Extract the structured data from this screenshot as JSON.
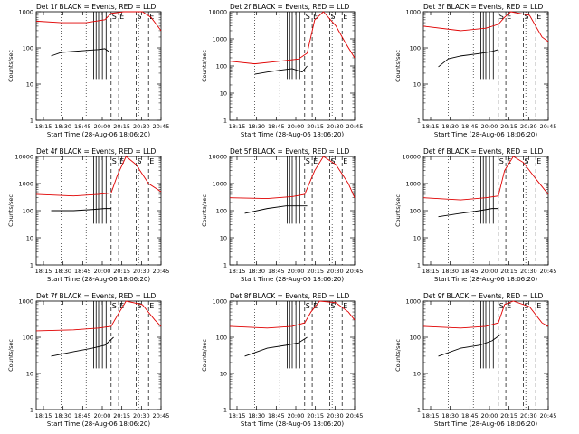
{
  "colors": {
    "events": "#000000",
    "lld": "#e00000",
    "axis": "#000000"
  },
  "common": {
    "xlabel": "Start Time (28-Aug-06 18:06:20)",
    "ylabel": "Counts/sec",
    "xticks": [
      "18:15",
      "18:30",
      "18:45",
      "20:00",
      "20:15",
      "20:30",
      "20:45"
    ]
  },
  "chart_data": [
    {
      "type": "line",
      "title": "Det 1f BLACK = Events, RED = LLD",
      "yscale": "log",
      "ylim": [
        1,
        1000
      ],
      "yticks": [
        "1",
        "10",
        "100",
        "1000"
      ],
      "markers": [
        "S",
        "E",
        "S",
        "E"
      ],
      "series": [
        {
          "name": "Events",
          "color": "#000000",
          "x": [
            0.12,
            0.2,
            0.3,
            0.4,
            0.5,
            0.55,
            0.58
          ],
          "y": [
            60,
            75,
            80,
            85,
            90,
            95,
            80
          ]
        },
        {
          "name": "LLD",
          "color": "#e00000",
          "x": [
            0,
            0.2,
            0.4,
            0.55,
            0.6,
            0.7,
            0.85,
            0.92,
            1.0
          ],
          "y": [
            550,
            500,
            500,
            600,
            900,
            1000,
            1000,
            700,
            300
          ]
        }
      ]
    },
    {
      "type": "line",
      "title": "Det 2f BLACK = Events, RED = LLD",
      "yscale": "log",
      "ylim": [
        1,
        10000
      ],
      "yticks": [
        "1",
        "10",
        "100",
        "1000",
        "10000"
      ],
      "markers": [
        "S",
        "E",
        "S",
        "E"
      ],
      "series": [
        {
          "name": "Events",
          "color": "#000000",
          "x": [
            0.2,
            0.3,
            0.4,
            0.5,
            0.58,
            0.62
          ],
          "y": [
            50,
            60,
            70,
            80,
            60,
            100
          ]
        },
        {
          "name": "LLD",
          "color": "#e00000",
          "x": [
            0,
            0.2,
            0.4,
            0.55,
            0.62,
            0.68,
            0.75,
            0.85,
            0.92,
            1.0
          ],
          "y": [
            150,
            120,
            150,
            180,
            300,
            5000,
            10000,
            3000,
            800,
            200
          ]
        }
      ]
    },
    {
      "type": "line",
      "title": "Det 3f BLACK = Events, RED = LLD",
      "yscale": "log",
      "ylim": [
        1,
        1000
      ],
      "yticks": [
        "1",
        "10",
        "100",
        "1000"
      ],
      "markers": [
        "S",
        "E",
        "S",
        "E"
      ],
      "series": [
        {
          "name": "Events",
          "color": "#000000",
          "x": [
            0.12,
            0.2,
            0.3,
            0.45,
            0.55,
            0.6
          ],
          "y": [
            30,
            50,
            60,
            70,
            80,
            90
          ]
        },
        {
          "name": "LLD",
          "color": "#e00000",
          "x": [
            0,
            0.3,
            0.5,
            0.6,
            0.65,
            0.7,
            0.85,
            0.95,
            1.0
          ],
          "y": [
            400,
            300,
            350,
            450,
            700,
            1000,
            800,
            200,
            150
          ]
        }
      ]
    },
    {
      "type": "line",
      "title": "Det 4f BLACK = Events, RED = LLD",
      "yscale": "log",
      "ylim": [
        1,
        10000
      ],
      "yticks": [
        "1",
        "10",
        "100",
        "1000",
        "10000"
      ],
      "markers": [
        "S",
        "E",
        "S",
        "E"
      ],
      "series": [
        {
          "name": "Events",
          "color": "#000000",
          "x": [
            0.12,
            0.2,
            0.3,
            0.45,
            0.55,
            0.6
          ],
          "y": [
            100,
            100,
            100,
            110,
            120,
            120
          ]
        },
        {
          "name": "LLD",
          "color": "#e00000",
          "x": [
            0,
            0.3,
            0.5,
            0.6,
            0.65,
            0.72,
            0.8,
            0.9,
            1.0
          ],
          "y": [
            400,
            350,
            400,
            450,
            2000,
            10000,
            5000,
            1000,
            500
          ]
        }
      ]
    },
    {
      "type": "line",
      "title": "Det 5f BLACK = Events, RED = LLD",
      "yscale": "log",
      "ylim": [
        1,
        10000
      ],
      "yticks": [
        "1",
        "10",
        "100",
        "1000",
        "10000"
      ],
      "markers": [
        "S",
        "E",
        "S",
        "E"
      ],
      "series": [
        {
          "name": "Events",
          "color": "#000000",
          "x": [
            0.12,
            0.3,
            0.45,
            0.55,
            0.62
          ],
          "y": [
            80,
            120,
            150,
            150,
            150
          ]
        },
        {
          "name": "LLD",
          "color": "#e00000",
          "x": [
            0,
            0.3,
            0.5,
            0.6,
            0.68,
            0.75,
            0.85,
            0.95,
            1.0
          ],
          "y": [
            300,
            280,
            330,
            400,
            3000,
            10000,
            5000,
            1000,
            300
          ]
        }
      ]
    },
    {
      "type": "line",
      "title": "Det 6f BLACK = Events, RED = LLD",
      "yscale": "log",
      "ylim": [
        1,
        10000
      ],
      "yticks": [
        "1",
        "10",
        "100",
        "1000",
        "10000"
      ],
      "markers": [
        "S",
        "E",
        "S",
        "E"
      ],
      "series": [
        {
          "name": "Events",
          "color": "#000000",
          "x": [
            0.12,
            0.3,
            0.45,
            0.55,
            0.6
          ],
          "y": [
            60,
            80,
            100,
            120,
            120
          ]
        },
        {
          "name": "LLD",
          "color": "#e00000",
          "x": [
            0,
            0.3,
            0.5,
            0.6,
            0.65,
            0.72,
            0.8,
            0.9,
            1.0
          ],
          "y": [
            300,
            250,
            300,
            350,
            3000,
            10000,
            6000,
            1500,
            400
          ]
        }
      ]
    },
    {
      "type": "line",
      "title": "Det 7f BLACK = Events, RED = LLD",
      "yscale": "log",
      "ylim": [
        1,
        1000
      ],
      "yticks": [
        "1",
        "10",
        "100",
        "1000"
      ],
      "markers": [
        "S",
        "E",
        "S",
        "E"
      ],
      "series": [
        {
          "name": "Events",
          "color": "#000000",
          "x": [
            0.12,
            0.3,
            0.45,
            0.55,
            0.62
          ],
          "y": [
            30,
            40,
            50,
            60,
            100
          ]
        },
        {
          "name": "LLD",
          "color": "#e00000",
          "x": [
            0,
            0.3,
            0.5,
            0.6,
            0.65,
            0.72,
            0.85,
            0.95,
            1.0
          ],
          "y": [
            150,
            160,
            180,
            200,
            400,
            1000,
            800,
            300,
            200
          ]
        }
      ]
    },
    {
      "type": "line",
      "title": "Det 8f BLACK = Events, RED = LLD",
      "yscale": "log",
      "ylim": [
        1,
        1000
      ],
      "yticks": [
        "1",
        "10",
        "100",
        "1000"
      ],
      "markers": [
        "S",
        "E",
        "S",
        "E"
      ],
      "series": [
        {
          "name": "Events",
          "color": "#000000",
          "x": [
            0.12,
            0.3,
            0.45,
            0.55,
            0.62
          ],
          "y": [
            30,
            50,
            60,
            70,
            100
          ]
        },
        {
          "name": "LLD",
          "color": "#e00000",
          "x": [
            0,
            0.3,
            0.5,
            0.6,
            0.65,
            0.72,
            0.85,
            0.95,
            1.0
          ],
          "y": [
            200,
            180,
            200,
            250,
            500,
            1000,
            900,
            500,
            300
          ]
        }
      ]
    },
    {
      "type": "line",
      "title": "Det 9f BLACK = Events, RED = LLD",
      "yscale": "log",
      "ylim": [
        1,
        1000
      ],
      "yticks": [
        "1",
        "10",
        "100",
        "1000"
      ],
      "markers": [
        "S",
        "E",
        "S",
        "E"
      ],
      "series": [
        {
          "name": "Events",
          "color": "#000000",
          "x": [
            0.12,
            0.3,
            0.45,
            0.55,
            0.62
          ],
          "y": [
            30,
            50,
            60,
            80,
            120
          ]
        },
        {
          "name": "LLD",
          "color": "#e00000",
          "x": [
            0,
            0.3,
            0.5,
            0.6,
            0.65,
            0.72,
            0.85,
            0.95,
            1.0
          ],
          "y": [
            200,
            180,
            200,
            250,
            800,
            1000,
            700,
            250,
            200
          ]
        }
      ]
    }
  ]
}
